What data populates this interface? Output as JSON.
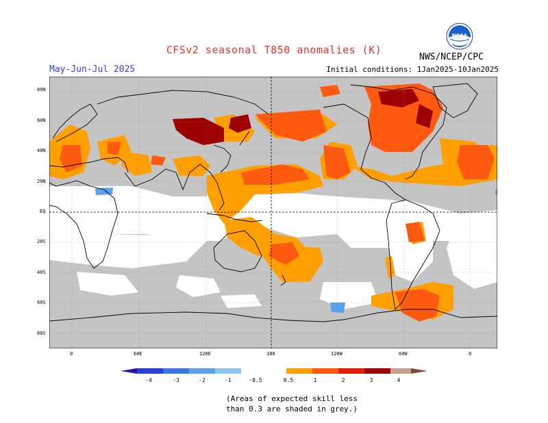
{
  "header": {
    "title": "CFSv2 seasonal T850 anomalies (K)",
    "period": "May-Jun-Jul 2025",
    "initial_conditions": "Initial conditions: 1Jan2025-10Jan2025",
    "agency": "NWS/NCEP/CPC",
    "logo_text": "NOAA"
  },
  "map": {
    "lat_labels": [
      "80N",
      "60N",
      "40N",
      "20N",
      "EQ",
      "20S",
      "40S",
      "60S",
      "80S"
    ],
    "lon_labels": [
      "0",
      "60E",
      "120E",
      "180",
      "120W",
      "60W",
      "0"
    ]
  },
  "legend": {
    "tick_labels": [
      "-4",
      "-3",
      "-2",
      "-1",
      "-0.5",
      "0.5",
      "1",
      "2",
      "3",
      "4"
    ],
    "colors": [
      "#2a0fa0",
      "#2a3fd0",
      "#3a78e0",
      "#5aa0ea",
      "#8ec4f0",
      "#ffffff",
      "#ff9f00",
      "#ff5a10",
      "#e02000",
      "#9c0000",
      "#c8a090",
      "#7a4a3a"
    ],
    "mask_color": "#c4c4c4"
  },
  "note": {
    "line1": "(Areas of expected skill less",
    "line2": "than 0.3 are shaded in grey.)"
  }
}
